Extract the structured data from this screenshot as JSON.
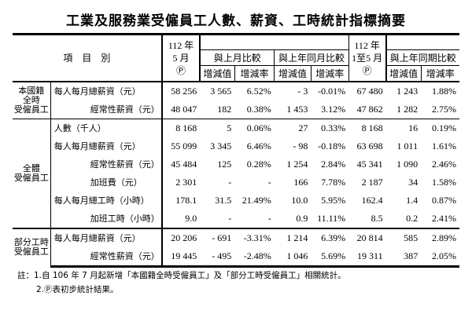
{
  "title": "工業及服務業受僱員工人數、薪資、工時統計指標摘要",
  "header": {
    "item_label": "項　目　別",
    "col_may": [
      "112 年",
      "5 月",
      "Ⓟ"
    ],
    "col_ytd": [
      "112 年",
      "1至5 月",
      "Ⓟ"
    ],
    "vs_prev_month": "與上月比較",
    "vs_prev_year_month": "與上年同月比較",
    "vs_prev_year_period": "與上年同期比較",
    "change_value": "增減值",
    "change_rate": "增減率"
  },
  "groups": [
    {
      "label": "本國籍\n全時\n受僱員工",
      "rows": [
        {
          "item": "每人每月總薪資（元）",
          "values": [
            "58 256",
            "3 565",
            "6.52%",
            "- 3",
            "-0.01%",
            "67 480",
            "1 243",
            "1.88%"
          ]
        },
        {
          "item": "經常性薪資（元）",
          "values": [
            "48 047",
            "182",
            "0.38%",
            "1 453",
            "3.12%",
            "47 862",
            "1 282",
            "2.75%"
          ]
        }
      ]
    },
    {
      "label": "全體\n受僱員工",
      "rows": [
        {
          "item": "人數（千人）",
          "values": [
            "8 168",
            "5",
            "0.06%",
            "27",
            "0.33%",
            "8 168",
            "16",
            "0.19%"
          ]
        },
        {
          "item": "每人每月總薪資（元）",
          "values": [
            "55 099",
            "3 345",
            "6.46%",
            "- 98",
            "-0.18%",
            "63 698",
            "1 011",
            "1.61%"
          ]
        },
        {
          "item": "經常性薪資（元）",
          "values": [
            "45 484",
            "125",
            "0.28%",
            "1 254",
            "2.84%",
            "45 341",
            "1 090",
            "2.46%"
          ]
        },
        {
          "item": "加班費（元）",
          "values": [
            "2 301",
            "-",
            "-",
            "166",
            "7.78%",
            "2 187",
            "34",
            "1.58%"
          ]
        },
        {
          "item": "每人每月總工時（小時）",
          "values": [
            "178.1",
            "31.5",
            "21.49%",
            "10.0",
            "5.95%",
            "162.4",
            "1.4",
            "0.87%"
          ]
        },
        {
          "item": "加班工時（小時）",
          "values": [
            "9.0",
            "-",
            "-",
            "0.9",
            "11.11%",
            "8.5",
            "0.2",
            "2.41%"
          ]
        }
      ]
    },
    {
      "label": "部分工時\n受僱員工",
      "rows": [
        {
          "item": "每人每月總薪資（元）",
          "values": [
            "20 206",
            "- 691",
            "-3.31%",
            "1 214",
            "6.39%",
            "20 814",
            "585",
            "2.89%"
          ]
        },
        {
          "item": "經常性薪資（元）",
          "values": [
            "19 445",
            "- 495",
            "-2.48%",
            "1 046",
            "5.69%",
            "19 311",
            "387",
            "2.05%"
          ]
        }
      ]
    }
  ],
  "notes": [
    "註：1.自 106 年 7 月起新增「本國籍全時受僱員工」及「部分工時受僱員工」相關統計。",
    "2.Ⓟ表初步統計結果。"
  ]
}
